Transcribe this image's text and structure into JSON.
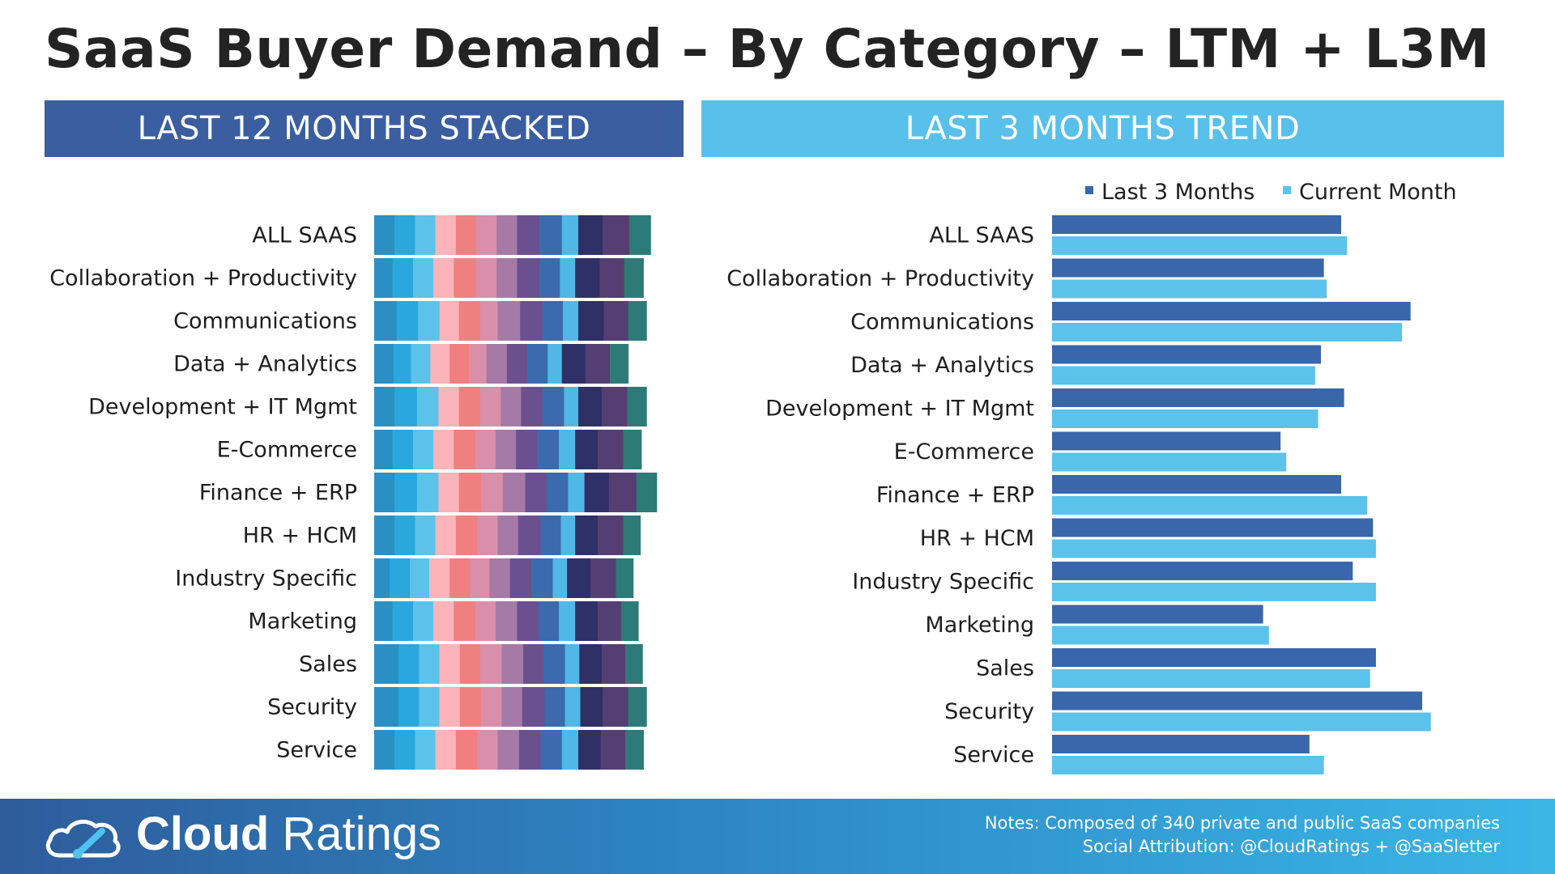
{
  "header": {
    "title": "SaaS Buyer Demand – By Category – LTM + L3M",
    "left_banner": "LAST 12 MONTHS STACKED",
    "right_banner": "LAST 3 MONTHS TREND"
  },
  "chart_data": [
    {
      "type": "bar",
      "orientation": "horizontal",
      "stacked": true,
      "title": "LAST 12 MONTHS STACKED",
      "categories": [
        "ALL SAAS",
        "Collaboration + Productivity",
        "Communications",
        "Data + Analytics",
        "Development + IT Mgmt",
        "E-Commerce",
        "Finance + ERP",
        "HR + HCM",
        "Industry Specific",
        "Marketing",
        "Sales",
        "Security",
        "Service"
      ],
      "segment_colors": [
        "#2b8fc3",
        "#2aa7dd",
        "#5cc2ea",
        "#fbb4b9",
        "#f08080",
        "#d98fa9",
        "#a67aa6",
        "#6b5090",
        "#3b6aae",
        "#4fb8e6",
        "#2e3066",
        "#553f72",
        "#2d7b78"
      ],
      "series": [
        {
          "values": [
            1.0,
            0.9,
            1.1,
            0.95,
            1.0,
            0.9,
            1.0,
            1.0,
            0.75,
            0.9,
            1.2,
            1.2,
            1.0
          ]
        },
        {
          "values": [
            1.0,
            1.0,
            1.05,
            0.85,
            1.1,
            1.0,
            1.1,
            1.0,
            1.0,
            1.0,
            1.0,
            1.0,
            1.0
          ]
        },
        {
          "values": [
            1.0,
            1.0,
            1.05,
            0.95,
            1.05,
            1.0,
            1.05,
            1.0,
            0.95,
            1.0,
            1.0,
            1.0,
            1.0
          ]
        },
        {
          "values": [
            1.0,
            1.0,
            0.95,
            0.95,
            1.0,
            1.0,
            1.0,
            1.0,
            1.0,
            1.0,
            1.0,
            1.0,
            1.0
          ]
        },
        {
          "values": [
            1.0,
            1.1,
            1.05,
            0.95,
            1.05,
            1.05,
            1.1,
            1.05,
            1.0,
            1.05,
            1.0,
            1.05,
            1.05
          ]
        },
        {
          "values": [
            1.0,
            1.0,
            0.85,
            0.85,
            1.0,
            1.0,
            1.05,
            1.0,
            0.95,
            1.0,
            1.05,
            1.0,
            1.0
          ]
        },
        {
          "values": [
            1.0,
            1.0,
            1.1,
            1.0,
            1.0,
            1.0,
            1.1,
            1.0,
            1.0,
            1.05,
            1.05,
            1.0,
            1.05
          ]
        },
        {
          "values": [
            1.1,
            1.1,
            1.1,
            1.0,
            1.05,
            1.05,
            1.05,
            1.1,
            1.05,
            1.05,
            1.0,
            1.1,
            1.05
          ]
        },
        {
          "values": [
            1.1,
            1.0,
            1.0,
            1.0,
            1.05,
            1.05,
            1.05,
            1.0,
            1.05,
            1.0,
            1.05,
            1.0,
            1.05
          ]
        },
        {
          "values": [
            0.8,
            0.75,
            0.75,
            0.7,
            0.7,
            0.8,
            0.8,
            0.7,
            0.7,
            0.8,
            0.7,
            0.75,
            0.8
          ]
        },
        {
          "values": [
            1.2,
            1.2,
            1.25,
            1.15,
            1.15,
            1.1,
            1.2,
            1.1,
            1.15,
            1.1,
            1.1,
            1.1,
            1.1
          ]
        },
        {
          "values": [
            1.3,
            1.2,
            1.2,
            1.2,
            1.25,
            1.25,
            1.35,
            1.25,
            1.25,
            1.15,
            1.15,
            1.25,
            1.2
          ]
        },
        {
          "values": [
            1.05,
            0.95,
            0.9,
            0.9,
            0.95,
            0.9,
            1.0,
            0.85,
            0.85,
            0.85,
            0.85,
            0.9,
            0.9
          ]
        }
      ]
    },
    {
      "type": "bar",
      "orientation": "horizontal",
      "title": "LAST 3 MONTHS TREND",
      "categories": [
        "ALL SAAS",
        "Collaboration + Productivity",
        "Communications",
        "Data + Analytics",
        "Development + IT Mgmt",
        "E-Commerce",
        "Finance + ERP",
        "HR + HCM",
        "Industry Specific",
        "Marketing",
        "Sales",
        "Security",
        "Service"
      ],
      "legend_position": "top-right",
      "series": [
        {
          "name": "Last 3 Months",
          "color": "#3a66ac",
          "values": [
            100,
            94,
            124,
            93,
            101,
            79,
            100,
            111,
            104,
            73,
            112,
            128,
            89
          ]
        },
        {
          "name": "Current Month",
          "color": "#5bc2ec",
          "values": [
            102,
            95,
            121,
            91,
            92,
            81,
            109,
            112,
            112,
            75,
            110,
            131,
            94
          ]
        }
      ]
    }
  ],
  "footer": {
    "logo_bold": "Cloud",
    "logo_light": "Ratings",
    "notes_line1": "Notes: Composed of 340 private and public SaaS companies",
    "notes_line2": "Social Attribution: @CloudRatings + @SaaSletter"
  }
}
